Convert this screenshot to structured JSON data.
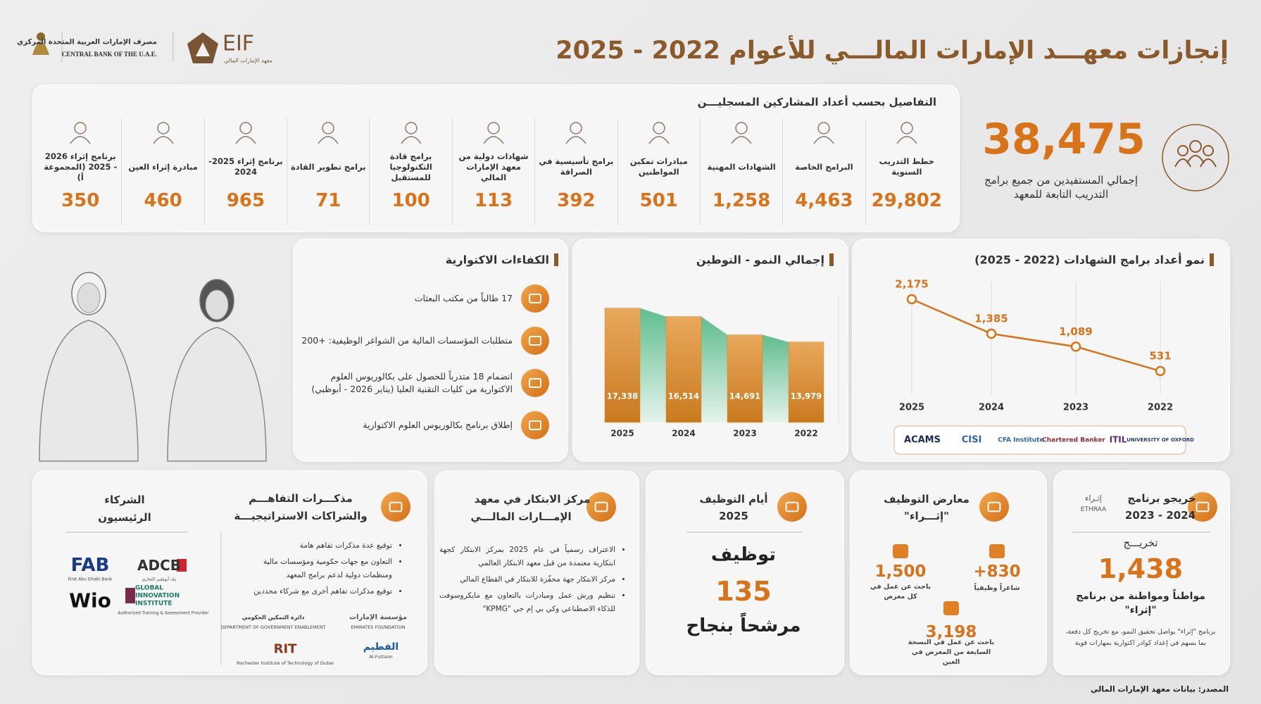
{
  "header": {
    "title": "إنجازات معهـــد الإمارات المالـــي للأعوام 2022 - 2025",
    "central_bank_ar": "مصرف الإمارات العربية المتحدة المركزي",
    "central_bank_en": "CENTRAL BANK OF THE U.A.E.",
    "eif": "EIF",
    "eif_sub": "معهد الإمارات المالي"
  },
  "summary": {
    "total": "38,475",
    "caption": "إجمالي المستفيدين من جميع برامج التدريب التابعة للمعهد"
  },
  "participants": {
    "title": "التفاصيل بحسب أعداد المشاركين المسجليـــن",
    "items": [
      {
        "label": "خطط التدريب السنوية",
        "value": "29,802"
      },
      {
        "label": "البرامج الخاصة",
        "value": "4,463"
      },
      {
        "label": "الشهادات المهنية",
        "value": "1,258"
      },
      {
        "label": "مبادرات تمكين المواطنين",
        "value": "501"
      },
      {
        "label": "برامج تأسيسية في الصرافة",
        "value": "392"
      },
      {
        "label": "شهادات دولية من معهد الإمارات المالي",
        "value": "113"
      },
      {
        "label": "برامج قادة التكنولوجيا للمستقبل",
        "value": "100"
      },
      {
        "label": "برامج تطوير القادة",
        "value": "71"
      },
      {
        "label": "برنامج إثراء 2025-2024",
        "value": "965"
      },
      {
        "label": "مبادرة إثراء العين",
        "value": "460"
      },
      {
        "label": "برنامج إثراء 2026 - 2025 (المجموعة أ)",
        "value": "350"
      }
    ]
  },
  "competencies": {
    "title": "الكفاءات الاكتوارية",
    "items": [
      "17 طالباً من مكتب البعثات",
      "متطلبات المؤسسات المالية من الشواغر الوظيفية: +200",
      "انضمام 18 متدرباً للحصول على بكالوريوس العلوم الاكتوارية من كليات التقنية العليا (يناير 2026 - أبوظبي)",
      "إطلاق برنامج بكالوريوس العلوم الاكتوارية"
    ]
  },
  "chart_data": [
    {
      "type": "bar",
      "title": "إجمالي النمو - التوطين",
      "categories": [
        "2025",
        "2024",
        "2023",
        "2022"
      ],
      "values": [
        17338,
        16514,
        14691,
        13979
      ],
      "value_labels": [
        "17,338",
        "16,514",
        "14,691",
        "13,979"
      ],
      "ylim": [
        6000,
        19000
      ],
      "color": "#d98a2e",
      "area_color": "#5fbf8f"
    },
    {
      "type": "line",
      "title": "نمو أعداد برامج الشهادات (2022 - 2025)",
      "categories": [
        "2025",
        "2024",
        "2023",
        "2022"
      ],
      "values": [
        2175,
        1385,
        1089,
        531
      ],
      "value_labels": [
        "2,175",
        "1,385",
        "1,089",
        "531"
      ],
      "ylim": [
        0,
        2400
      ],
      "color": "#d9731a",
      "grid": true
    }
  ],
  "certifications": [
    "ACAMS",
    "CISI",
    "CFA Institute",
    "Chartered Banker",
    "ITIL",
    "UNIVERSITY OF OXFORD"
  ],
  "graduates": {
    "title": "خريجو برنامج",
    "period": "2024 - 2023",
    "logo_ar": "إثـراء",
    "logo_en": "ETHRAA",
    "label": "تخريـــج",
    "value": "1,438",
    "caption": "مواطناً ومواطنة من برنامج \"إثراء\"",
    "note": "برنامج \"إثراء\" يواصل تحقيق النمو، مع تخريج كل دفعة، بما يسهم في إعداد كوادر اكتوارية بمهارات قوية"
  },
  "job_fairs": {
    "title": "معارض التوظيف",
    "subtitle": "\"إثـــراء\"",
    "stats": [
      {
        "value": "830+",
        "label": "شاغراً وظيفياً"
      },
      {
        "value": "1,500",
        "label": "باحث عن عمل في كل معرض"
      },
      {
        "value": "3,198",
        "label": "باحث عن عمل في النسخة السابعة من المعرض في العين"
      }
    ]
  },
  "employment_days": {
    "title": "أيام التوظيف",
    "year": "2025",
    "label": "توظيف",
    "value": "135",
    "caption": "مرشحاً بنجاح"
  },
  "innovation": {
    "title": "مركز الابتكار في معهد",
    "title2": "الإمـــارات المالـــي",
    "bullets": [
      "الاعتراف رسمياً في عام 2025 بمركز الابتكار كجهة ابتكارية معتمدة من قبل معهد الابتكار العالمي",
      "مركز الابتكار جهة محفّزة للابتكار في القطاع المالي",
      "تنظيم ورش عمل ومبادرات بالتعاون مع مايكروسوفت للذكاء الاصطناعي وكي بي إم جي \"KPMG\""
    ]
  },
  "mou": {
    "title": "مذكـــرات التفاهـــم",
    "title2": "والشراكات الاستراتيجيـــة",
    "bullets": [
      "توقيع عدة مذكرات تفاهم هامة",
      "التعاون مع جهات حكومية ومؤسسات مالية ومنظمات دولية لدعم برامج المعهد",
      "توقيع مذكرات تفاهم أخرى مع شركاء محددين"
    ],
    "logos": [
      {
        "name": "مؤسسة الإمارات",
        "sub": "EMIRATES FOUNDATION"
      },
      {
        "name": "دائرة التمكين الحكومي",
        "sub": "DEPARTMENT OF GOVERNMENT ENABLEMENT"
      },
      {
        "name": "الفطيم",
        "sub": "Al-Futtaim"
      },
      {
        "name": "RIT",
        "sub": "Rochester Institute of Technology of Dubai"
      }
    ]
  },
  "partners": {
    "title": "الشركاء",
    "title2": "الرئيسيون",
    "logos": [
      {
        "name": "FAB",
        "sub": "First Abu Dhabi Bank"
      },
      {
        "name": "ADCB",
        "sub": "بنك أبوظبي التجاري"
      },
      {
        "name": "Wio",
        "sub": ""
      },
      {
        "name": "GLOBAL INNOVATION INSTITUTE",
        "sub": "Authorized Training & Assessment Provider"
      }
    ]
  },
  "source": "المصدر: بيانات معهد الإمارات المالي"
}
